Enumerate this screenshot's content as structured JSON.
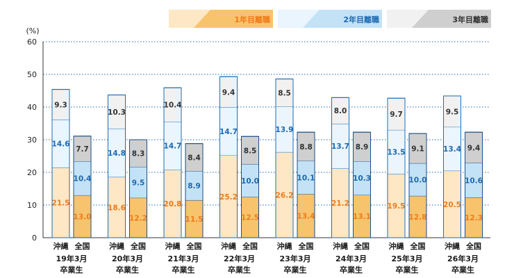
{
  "chart_data": {
    "type": "bar",
    "stacked": true,
    "title": "",
    "xlabel": "",
    "ylabel": "(%)",
    "ylim": [
      0,
      60
    ],
    "yticks": [
      0,
      10,
      20,
      30,
      40,
      50,
      60
    ],
    "grid": true,
    "legend_position": "top-right",
    "groups": [
      {
        "line1": "19年3月",
        "line2": "卒業生"
      },
      {
        "line1": "20年3月",
        "line2": "卒業生"
      },
      {
        "line1": "21年3月",
        "line2": "卒業生"
      },
      {
        "line1": "22年3月",
        "line2": "卒業生"
      },
      {
        "line1": "23年3月",
        "line2": "卒業生"
      },
      {
        "line1": "24年3月",
        "line2": "卒業生"
      },
      {
        "line1": "25年3月",
        "line2": "卒業生"
      },
      {
        "line1": "26年3月",
        "line2": "卒業生"
      }
    ],
    "bar_labels": [
      "沖縄",
      "全国"
    ],
    "series": [
      {
        "name": "1年目離職",
        "okinawa": [
          21.5,
          18.6,
          20.8,
          25.2,
          26.2,
          21.2,
          19.5,
          20.5
        ],
        "national": [
          13.0,
          12.2,
          11.5,
          12.5,
          13.4,
          13.1,
          12.8,
          12.3
        ]
      },
      {
        "name": "2年目離職",
        "okinawa": [
          14.6,
          14.8,
          14.7,
          14.7,
          13.9,
          13.7,
          13.5,
          13.4
        ],
        "national": [
          10.4,
          9.5,
          8.9,
          10.0,
          10.1,
          10.3,
          10.0,
          10.6
        ]
      },
      {
        "name": "3年目離職",
        "okinawa": [
          9.3,
          10.3,
          10.4,
          9.4,
          8.5,
          8.0,
          9.7,
          9.5
        ],
        "national": [
          7.7,
          8.3,
          8.4,
          8.5,
          8.8,
          8.9,
          9.1,
          9.4
        ]
      }
    ],
    "colors": {
      "s1_okinawa": "#fde7c4",
      "s1_national": "#f8c36d",
      "s2_okinawa": "#eaf5fd",
      "s2_national": "#c3e2f6",
      "s3_okinawa": "#f1f1f1",
      "s3_national": "#cfcfcf",
      "s1_text": "#ee7b1a",
      "s2_text": "#1e69b0",
      "s3_text": "#333333",
      "border_okinawa": "#1a6fb6",
      "border_national": "#1a4f86"
    }
  }
}
